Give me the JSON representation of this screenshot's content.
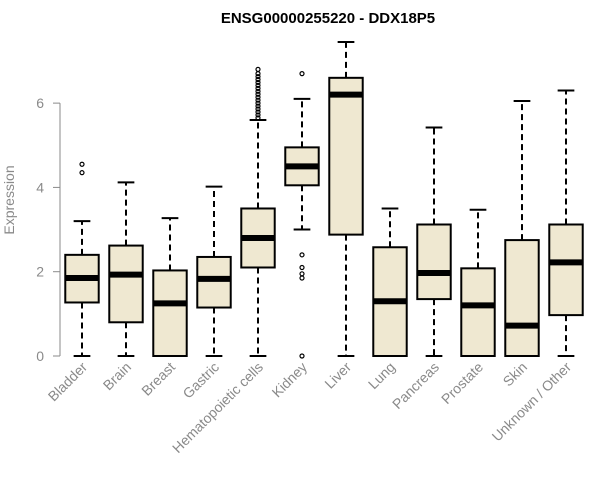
{
  "chart_data": {
    "type": "boxplot",
    "title": "ENSG00000255220 - DDX18P5",
    "ylabel": "Expression",
    "xlabel": "",
    "ylim": [
      0,
      7.45
    ],
    "yticks": [
      0,
      2,
      4,
      6
    ],
    "grid": false,
    "box_color": "#efe8d1",
    "categories": [
      "Bladder",
      "Brain",
      "Breast",
      "Gastric",
      "Hematopoietic cells",
      "Kidney",
      "Liver",
      "Lung",
      "Pancreas",
      "Prostate",
      "Skin",
      "Unknown / Other"
    ],
    "boxes": [
      {
        "min": 0,
        "q1": 1.27,
        "median": 1.85,
        "q3": 2.4,
        "max": 3.2,
        "outliers": [
          4.35,
          4.55
        ]
      },
      {
        "min": 0,
        "q1": 0.8,
        "median": 1.93,
        "q3": 2.62,
        "max": 4.12,
        "outliers": []
      },
      {
        "min": 0,
        "q1": 0,
        "median": 1.25,
        "q3": 2.03,
        "max": 3.27,
        "outliers": []
      },
      {
        "min": 0,
        "q1": 1.15,
        "median": 1.83,
        "q3": 2.35,
        "max": 4.02,
        "outliers": []
      },
      {
        "min": 0,
        "q1": 2.1,
        "median": 2.8,
        "q3": 3.5,
        "max": 5.6,
        "outliers": [
          5.65,
          5.72,
          5.79,
          5.86,
          5.93,
          6.0,
          6.07,
          6.14,
          6.21,
          6.28,
          6.35,
          6.42,
          6.49,
          6.56,
          6.63,
          6.7,
          6.8
        ]
      },
      {
        "min": 3.0,
        "q1": 4.05,
        "median": 4.5,
        "q3": 4.95,
        "max": 6.1,
        "outliers": [
          6.7,
          2.4,
          2.1,
          1.95,
          1.85,
          0
        ]
      },
      {
        "min": 0,
        "q1": 2.88,
        "median": 6.2,
        "q3": 6.6,
        "max": 7.45,
        "outliers": []
      },
      {
        "min": 0,
        "q1": 0,
        "median": 1.3,
        "q3": 2.58,
        "max": 3.5,
        "outliers": []
      },
      {
        "min": 0,
        "q1": 1.35,
        "median": 1.97,
        "q3": 3.12,
        "max": 5.42,
        "outliers": []
      },
      {
        "min": 0,
        "q1": 0,
        "median": 1.2,
        "q3": 2.08,
        "max": 3.47,
        "outliers": []
      },
      {
        "min": 0,
        "q1": 0,
        "median": 0.72,
        "q3": 2.75,
        "max": 6.05,
        "outliers": []
      },
      {
        "min": 0,
        "q1": 0.97,
        "median": 2.22,
        "q3": 3.12,
        "max": 6.3,
        "outliers": []
      }
    ]
  }
}
